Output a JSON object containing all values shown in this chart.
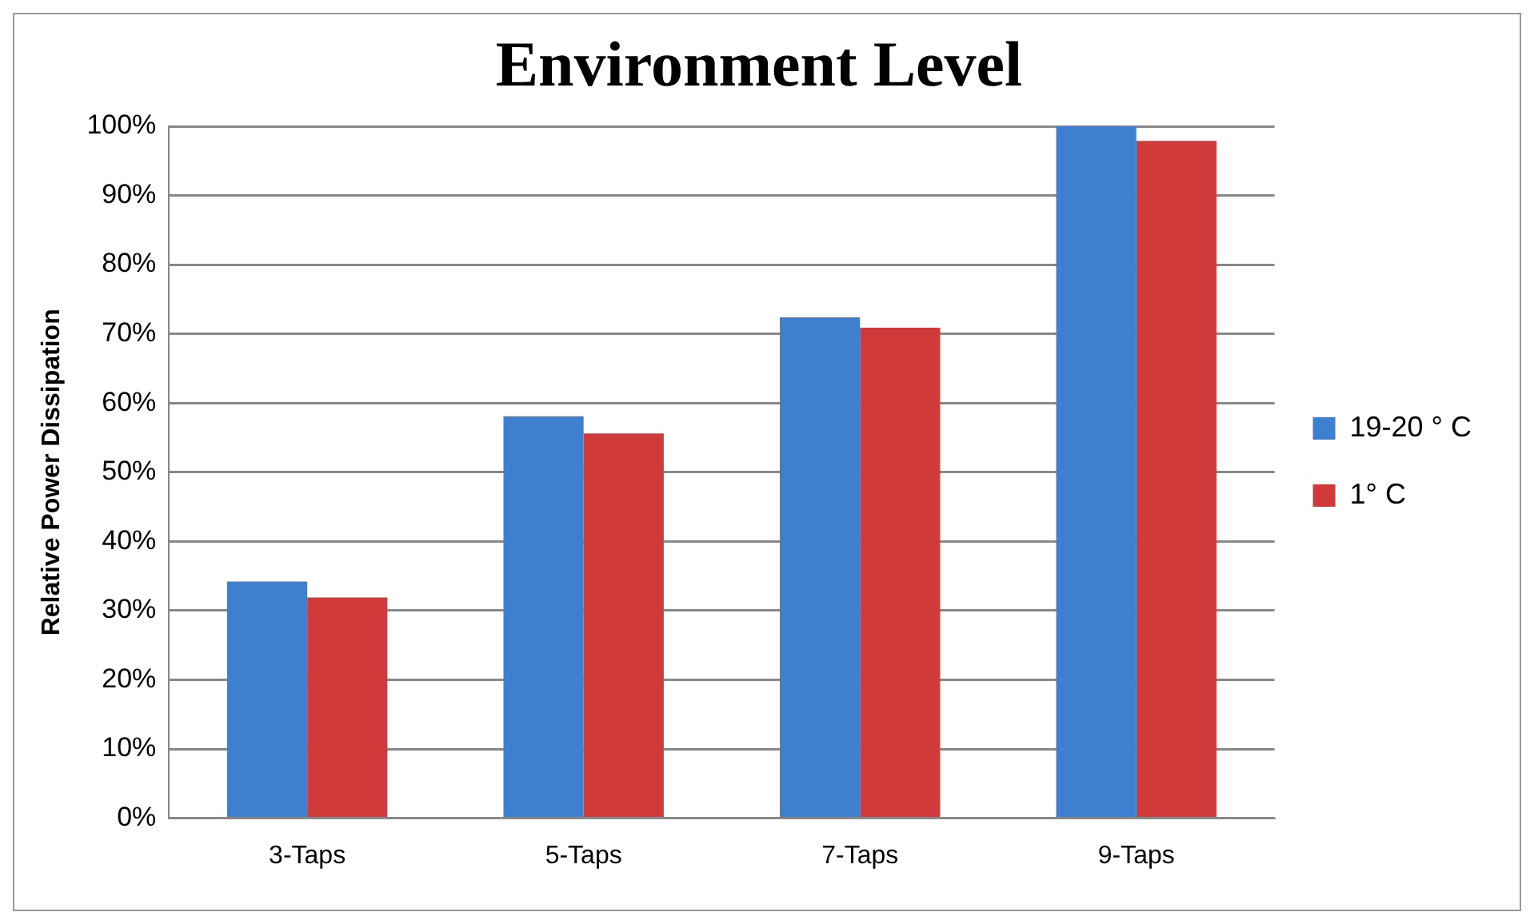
{
  "chart_data": {
    "type": "bar",
    "title": "Environment Level",
    "ylabel": "Relative Power Dissipation",
    "categories": [
      "3-Taps",
      "5-Taps",
      "7-Taps",
      "9-Taps"
    ],
    "series": [
      {
        "name": "19-20 ° C",
        "color": "#3f7fd0",
        "values": [
          34.2,
          58.1,
          72.4,
          100
        ]
      },
      {
        "name": "1° C",
        "color": "#d03a3a",
        "values": [
          31.9,
          55.6,
          70.9,
          97.9
        ]
      }
    ],
    "ylim": [
      0,
      100
    ],
    "yticks": [
      {
        "value": 0,
        "label": "0%"
      },
      {
        "value": 10,
        "label": "10%"
      },
      {
        "value": 20,
        "label": "20%"
      },
      {
        "value": 30,
        "label": "30%"
      },
      {
        "value": 40,
        "label": "40%"
      },
      {
        "value": 50,
        "label": "50%"
      },
      {
        "value": 60,
        "label": "60%"
      },
      {
        "value": 70,
        "label": "70%"
      },
      {
        "value": 80,
        "label": "80%"
      },
      {
        "value": 90,
        "label": "90%"
      },
      {
        "value": 100,
        "label": "100%"
      }
    ],
    "grid": "y",
    "legend": "right"
  }
}
